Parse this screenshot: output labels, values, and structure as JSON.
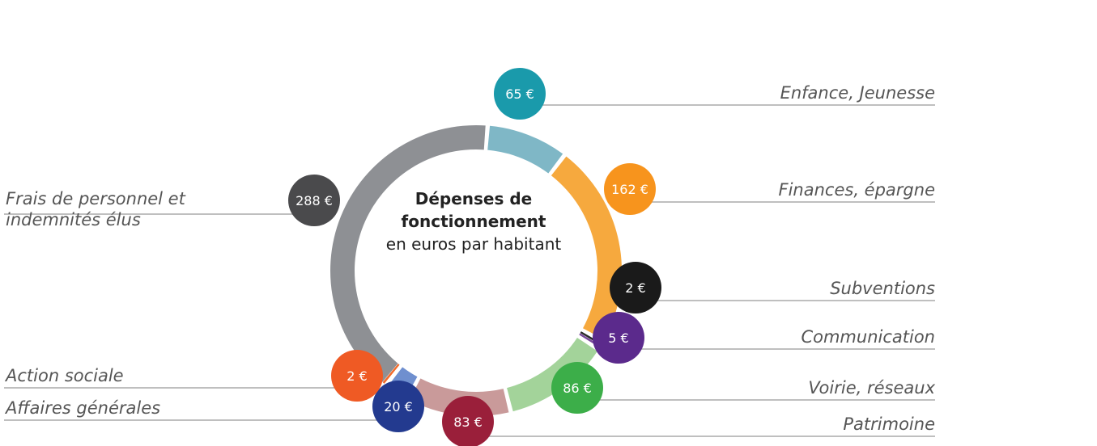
{
  "chart_data": {
    "type": "donut",
    "title": "Dépenses de fonctionnement",
    "subtitle": "en euros par habitant",
    "categories": [
      "Enfance, Jeunesse",
      "Finances, épargne",
      "Subventions",
      "Communication",
      "Voirie, réseaux",
      "Patrimoine",
      "Affaires générales",
      "Action sociale",
      "Frais de personnel et indemnités élus"
    ],
    "values": [
      65,
      162,
      2,
      5,
      86,
      83,
      20,
      2,
      288
    ],
    "value_labels": [
      "65 €",
      "162 €",
      "2 €",
      "5 €",
      "86 €",
      "83 €",
      "20 €",
      "2 €",
      "288 €"
    ],
    "colors": [
      "#7fb7c6",
      "#f6a93e",
      "#2a2a2a",
      "#7a4a9c",
      "#a3d39a",
      "#c99a9a",
      "#6f8fcf",
      "#f26a2a",
      "#8e9094"
    ],
    "badge_colors": [
      "#1a9aab",
      "#f7941d",
      "#1a1a1a",
      "#5b2a8c",
      "#3cae49",
      "#9a1f3a",
      "#233a8f",
      "#ef5a24",
      "#4a4a4c"
    ]
  }
}
